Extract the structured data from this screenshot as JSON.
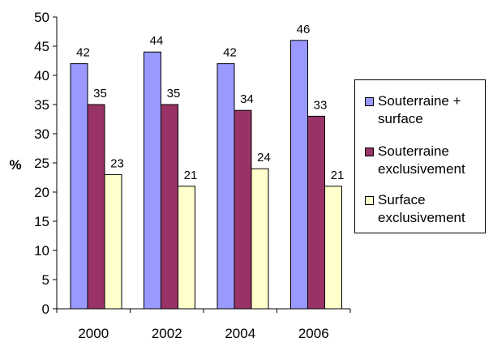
{
  "chart_data": {
    "type": "bar",
    "categories": [
      "2000",
      "2002",
      "2004",
      "2006"
    ],
    "series": [
      {
        "name": "Souterraine + surface",
        "values": [
          42,
          44,
          42,
          46
        ],
        "color": "#9999FF"
      },
      {
        "name": "Souterraine exclusivement",
        "values": [
          35,
          35,
          34,
          33
        ],
        "color": "#993366"
      },
      {
        "name": "Surface exclusivement",
        "values": [
          23,
          21,
          24,
          21
        ],
        "color": "#FFFFCC"
      }
    ],
    "ylabel": "%",
    "xlabel": "",
    "title": "",
    "ylim": [
      0,
      50
    ],
    "yticks": [
      0,
      5,
      10,
      15,
      20,
      25,
      30,
      35,
      40,
      45,
      50
    ],
    "grid": false,
    "legend_position": "right"
  }
}
